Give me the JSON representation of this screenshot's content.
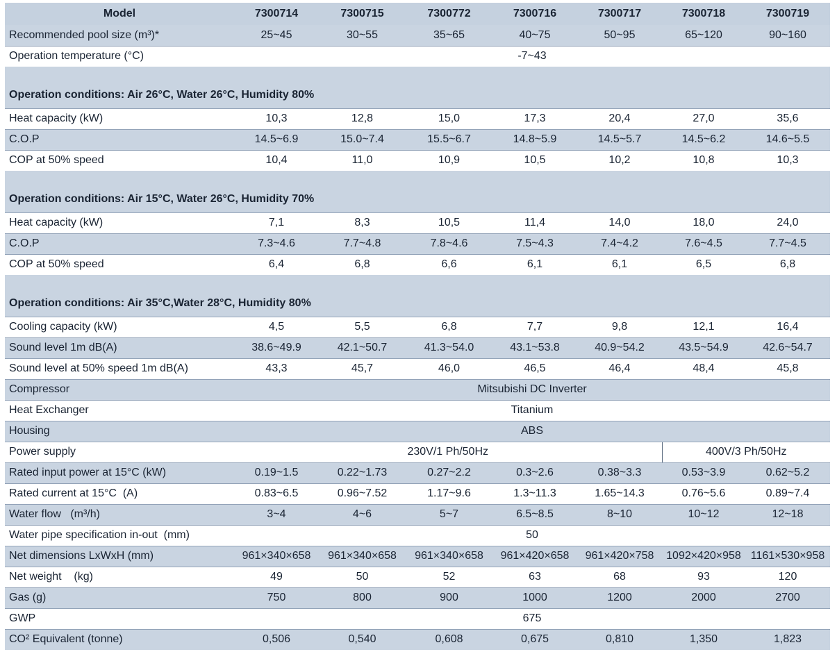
{
  "header": {
    "label": "Model",
    "models": [
      "7300714",
      "7300715",
      "7300772",
      "7300716",
      "7300717",
      "7300718",
      "7300719"
    ]
  },
  "pool_size": {
    "label": "Recommended pool size (m³)*",
    "values": [
      "25~45",
      "30~55",
      "35~65",
      "40~75",
      "50~95",
      "65~120",
      "90~160"
    ]
  },
  "operation_temperature": {
    "label": "Operation temperature (°C)",
    "value": "-7~43"
  },
  "section1": {
    "title": "Operation conditions: Air 26°C, Water 26°C, Humidity 80%",
    "heat_capacity": {
      "label": "Heat capacity (kW)",
      "values": [
        "10,3",
        "12,8",
        "15,0",
        "17,3",
        "20,4",
        "27,0",
        "35,6"
      ]
    },
    "cop": {
      "label": "C.O.P",
      "values": [
        "14.5~6.9",
        "15.0~7.4",
        "15.5~6.7",
        "14.8~5.9",
        "14.5~5.7",
        "14.5~6.2",
        "14.6~5.5"
      ]
    },
    "cop_50": {
      "label": "COP at 50% speed",
      "values": [
        "10,4",
        "11,0",
        "10,9",
        "10,5",
        "10,2",
        "10,8",
        "10,3"
      ]
    }
  },
  "section2": {
    "title": "Operation conditions: Air 15°C, Water 26°C, Humidity 70%",
    "heat_capacity": {
      "label": "Heat capacity (kW)",
      "values": [
        "7,1",
        "8,3",
        "10,5",
        "11,4",
        "14,0",
        "18,0",
        "24,0"
      ]
    },
    "cop": {
      "label": "C.O.P",
      "values": [
        "7.3~4.6",
        "7.7~4.8",
        "7.8~4.6",
        "7.5~4.3",
        "7.4~4.2",
        "7.6~4.5",
        "7.7~4.5"
      ]
    },
    "cop_50": {
      "label": "COP at 50% speed",
      "values": [
        "6,4",
        "6,8",
        "6,6",
        "6,1",
        "6,1",
        "6,5",
        "6,8"
      ]
    }
  },
  "section3": {
    "title": "Operation conditions: Air 35°C,Water 28°C, Humidity 80%",
    "cooling_capacity": {
      "label": "Cooling capacity (kW)",
      "values": [
        "4,5",
        "5,5",
        "6,8",
        "7,7",
        "9,8",
        "12,1",
        "16,4"
      ]
    },
    "sound_level": {
      "label": "Sound level 1m dB(A)",
      "values": [
        "38.6~49.9",
        "42.1~50.7",
        "41.3~54.0",
        "43.1~53.8",
        "40.9~54.2",
        "43.5~54.9",
        "42.6~54.7"
      ]
    },
    "sound_level_50": {
      "label": "Sound level at 50% speed 1m dB(A)",
      "values": [
        "43,3",
        "45,7",
        "46,0",
        "46,5",
        "46,4",
        "48,4",
        "45,8"
      ]
    }
  },
  "compressor": {
    "label": "Compressor",
    "value": "Mitsubishi DC Inverter"
  },
  "heat_exchanger": {
    "label": "Heat Exchanger",
    "value": "Titanium"
  },
  "housing": {
    "label": "Housing",
    "value": "ABS"
  },
  "power_supply": {
    "label": "Power supply",
    "single_phase": "230V/1 Ph/50Hz",
    "three_phase": "400V/3 Ph/50Hz"
  },
  "rated_input_power": {
    "label": "Rated input power at 15°C (kW)",
    "values": [
      "0.19~1.5",
      "0.22~1.73",
      "0.27~2.2",
      "0.3~2.6",
      "0.38~3.3",
      "0.53~3.9",
      "0.62~5.2"
    ]
  },
  "rated_current": {
    "label": "Rated current at 15°C  (A)",
    "values": [
      "0.83~6.5",
      "0.96~7.52",
      "1.17~9.6",
      "1.3~11.3",
      "1.65~14.3",
      "0.76~5.6",
      "0.89~7.4"
    ]
  },
  "water_flow": {
    "label": "Water flow   (m³/h)",
    "values": [
      "3~4",
      "4~6",
      "5~7",
      "6.5~8.5",
      "8~10",
      "10~12",
      "12~18"
    ]
  },
  "water_pipe": {
    "label": "Water pipe specification in-out  (mm)",
    "value": "50"
  },
  "net_dimensions": {
    "label": "Net dimensions LxWxH (mm)",
    "values": [
      "961×340×658",
      "961×340×658",
      "961×340×658",
      "961×420×658",
      "961×420×758",
      "1092×420×958",
      "1161×530×958"
    ]
  },
  "net_weight": {
    "label": "Net weight    (kg)",
    "values": [
      "49",
      "50",
      "52",
      "63",
      "68",
      "93",
      "120"
    ]
  },
  "gas": {
    "label": "Gas (g)",
    "values": [
      "750",
      "800",
      "900",
      "1000",
      "1200",
      "2000",
      "2700"
    ]
  },
  "gwp": {
    "label": "GWP",
    "value": "675"
  },
  "co2": {
    "label": "CO² Equivalent (tonne)",
    "values": [
      "0,506",
      "0,540",
      "0,608",
      "0,675",
      "0,810",
      "1,350",
      "1,823"
    ]
  },
  "colors": {
    "row_shade": "#c9d4e1",
    "header_shade": "#c5d1df",
    "rule": "#93a3b8",
    "text": "#1a2433"
  }
}
